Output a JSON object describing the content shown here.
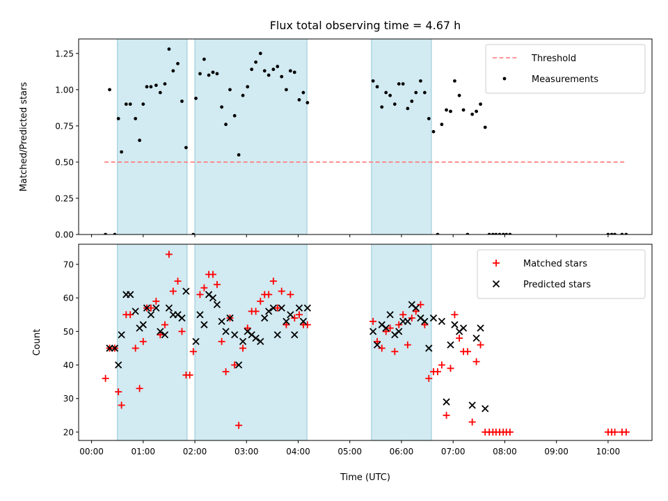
{
  "chart_data": [
    {
      "type": "scatter",
      "title": "Flux total observing time = 4.67 h",
      "xlabel": "",
      "ylabel": "Matched/Predicted stars",
      "xlim_hours": [
        -0.25,
        10.85
      ],
      "ylim": [
        0,
        1.35
      ],
      "yticks": [
        "0.00",
        "0.25",
        "0.50",
        "0.75",
        "1.00",
        "1.25"
      ],
      "yticks_values": [
        0,
        0.25,
        0.5,
        0.75,
        1.0,
        1.25
      ],
      "grid": false,
      "legend_placement": "top-right",
      "shaded_intervals_hours": [
        [
          0.5,
          1.85
        ],
        [
          2.0,
          4.17
        ],
        [
          5.42,
          6.58
        ]
      ],
      "threshold": {
        "name": "Threshold",
        "value": 0.5,
        "x_range_hours": [
          0.25,
          10.35
        ],
        "style": "dashed",
        "color": "#ff7777"
      },
      "series": [
        {
          "name": "Measurements",
          "color": "#000000",
          "marker": "dot",
          "points": [
            [
              0.27,
              0
            ],
            [
              0.35,
              1.0
            ],
            [
              0.45,
              0
            ],
            [
              0.52,
              0.8
            ],
            [
              0.58,
              0.57
            ],
            [
              0.67,
              0.9
            ],
            [
              0.75,
              0.9
            ],
            [
              0.85,
              0.8
            ],
            [
              0.93,
              0.65
            ],
            [
              1.0,
              0.9
            ],
            [
              1.07,
              1.02
            ],
            [
              1.15,
              1.02
            ],
            [
              1.25,
              1.03
            ],
            [
              1.33,
              0.98
            ],
            [
              1.42,
              1.04
            ],
            [
              1.5,
              1.28
            ],
            [
              1.58,
              1.13
            ],
            [
              1.67,
              1.18
            ],
            [
              1.75,
              0.92
            ],
            [
              1.83,
              0.6
            ],
            [
              1.97,
              0
            ],
            [
              2.02,
              0.94
            ],
            [
              2.1,
              1.11
            ],
            [
              2.18,
              1.21
            ],
            [
              2.27,
              1.1
            ],
            [
              2.35,
              1.12
            ],
            [
              2.43,
              1.11
            ],
            [
              2.52,
              0.88
            ],
            [
              2.6,
              0.76
            ],
            [
              2.68,
              1.0
            ],
            [
              2.77,
              0.82
            ],
            [
              2.85,
              0.55
            ],
            [
              2.93,
              0.96
            ],
            [
              3.02,
              1.02
            ],
            [
              3.1,
              1.14
            ],
            [
              3.18,
              1.19
            ],
            [
              3.27,
              1.25
            ],
            [
              3.35,
              1.13
            ],
            [
              3.43,
              1.1
            ],
            [
              3.52,
              1.14
            ],
            [
              3.6,
              1.16
            ],
            [
              3.68,
              1.09
            ],
            [
              3.77,
              1.0
            ],
            [
              3.85,
              1.13
            ],
            [
              3.93,
              1.12
            ],
            [
              4.02,
              0.93
            ],
            [
              4.1,
              0.98
            ],
            [
              4.18,
              0.91
            ],
            [
              5.45,
              1.06
            ],
            [
              5.53,
              1.02
            ],
            [
              5.62,
              0.88
            ],
            [
              5.7,
              0.98
            ],
            [
              5.78,
              0.96
            ],
            [
              5.87,
              0.9
            ],
            [
              5.95,
              1.04
            ],
            [
              6.03,
              1.04
            ],
            [
              6.12,
              0.87
            ],
            [
              6.2,
              0.92
            ],
            [
              6.28,
              0.98
            ],
            [
              6.37,
              1.06
            ],
            [
              6.45,
              0.98
            ],
            [
              6.53,
              0.8
            ],
            [
              6.62,
              0.71
            ],
            [
              6.7,
              0
            ],
            [
              6.78,
              0.76
            ],
            [
              6.87,
              0.86
            ],
            [
              6.95,
              0.85
            ],
            [
              7.03,
              1.06
            ],
            [
              7.12,
              0.96
            ],
            [
              7.2,
              0.86
            ],
            [
              7.28,
              0
            ],
            [
              7.37,
              0.83
            ],
            [
              7.45,
              0.85
            ],
            [
              7.53,
              0.9
            ],
            [
              7.62,
              0.74
            ],
            [
              7.7,
              0
            ],
            [
              7.77,
              0
            ],
            [
              7.83,
              0
            ],
            [
              7.9,
              0
            ],
            [
              7.97,
              0
            ],
            [
              8.03,
              0
            ],
            [
              8.1,
              0
            ],
            [
              10.0,
              0
            ],
            [
              10.07,
              0
            ],
            [
              10.13,
              0
            ],
            [
              10.27,
              0
            ],
            [
              10.35,
              0
            ]
          ]
        }
      ]
    },
    {
      "type": "scatter",
      "title": "",
      "xlabel": "Time (UTC)",
      "ylabel": "Count",
      "xlim_hours": [
        -0.25,
        10.85
      ],
      "ylim": [
        17.5,
        76
      ],
      "yticks": [
        "20",
        "30",
        "40",
        "50",
        "60",
        "70"
      ],
      "yticks_values": [
        20,
        30,
        40,
        50,
        60,
        70
      ],
      "xticks": [
        "00:00",
        "01:00",
        "02:00",
        "03:00",
        "04:00",
        "05:00",
        "06:00",
        "07:00",
        "08:00",
        "09:00",
        "10:00"
      ],
      "xticks_values": [
        0,
        1,
        2,
        3,
        4,
        5,
        6,
        7,
        8,
        9,
        10
      ],
      "grid": false,
      "legend_placement": "top-right",
      "shaded_intervals_hours": [
        [
          0.5,
          1.85
        ],
        [
          2.0,
          4.17
        ],
        [
          5.42,
          6.58
        ]
      ],
      "series": [
        {
          "name": "Matched stars",
          "color": "#ff0000",
          "marker": "plus",
          "points": [
            [
              0.27,
              36
            ],
            [
              0.35,
              45
            ],
            [
              0.45,
              45
            ],
            [
              0.52,
              32
            ],
            [
              0.58,
              28
            ],
            [
              0.67,
              55
            ],
            [
              0.75,
              55
            ],
            [
              0.85,
              45
            ],
            [
              0.93,
              33
            ],
            [
              1.0,
              47
            ],
            [
              1.07,
              57
            ],
            [
              1.15,
              57
            ],
            [
              1.25,
              59
            ],
            [
              1.33,
              49
            ],
            [
              1.42,
              52
            ],
            [
              1.5,
              73
            ],
            [
              1.58,
              62
            ],
            [
              1.67,
              65
            ],
            [
              1.75,
              50
            ],
            [
              1.83,
              37
            ],
            [
              1.9,
              37
            ],
            [
              1.97,
              44
            ],
            [
              2.1,
              61
            ],
            [
              2.18,
              63
            ],
            [
              2.27,
              67
            ],
            [
              2.35,
              67
            ],
            [
              2.43,
              64
            ],
            [
              2.52,
              47
            ],
            [
              2.6,
              38
            ],
            [
              2.68,
              54
            ],
            [
              2.77,
              40
            ],
            [
              2.85,
              22
            ],
            [
              2.93,
              45
            ],
            [
              3.02,
              51
            ],
            [
              3.1,
              56
            ],
            [
              3.18,
              56
            ],
            [
              3.27,
              59
            ],
            [
              3.35,
              61
            ],
            [
              3.43,
              61
            ],
            [
              3.52,
              65
            ],
            [
              3.6,
              57
            ],
            [
              3.68,
              62
            ],
            [
              3.77,
              52
            ],
            [
              3.85,
              61
            ],
            [
              3.93,
              54
            ],
            [
              4.02,
              55
            ],
            [
              4.1,
              52
            ],
            [
              4.18,
              52
            ],
            [
              5.45,
              53
            ],
            [
              5.53,
              47
            ],
            [
              5.62,
              45
            ],
            [
              5.7,
              50
            ],
            [
              5.78,
              51
            ],
            [
              5.87,
              44
            ],
            [
              5.95,
              52
            ],
            [
              6.03,
              55
            ],
            [
              6.12,
              46
            ],
            [
              6.2,
              54
            ],
            [
              6.28,
              56
            ],
            [
              6.37,
              58
            ],
            [
              6.45,
              52
            ],
            [
              6.53,
              36
            ],
            [
              6.62,
              38
            ],
            [
              6.7,
              38
            ],
            [
              6.78,
              40
            ],
            [
              6.87,
              25
            ],
            [
              6.95,
              39
            ],
            [
              7.03,
              55
            ],
            [
              7.12,
              48
            ],
            [
              7.2,
              44
            ],
            [
              7.28,
              44
            ],
            [
              7.37,
              23
            ],
            [
              7.45,
              41
            ],
            [
              7.53,
              46
            ],
            [
              7.62,
              20
            ],
            [
              7.7,
              20
            ],
            [
              7.77,
              20
            ],
            [
              7.83,
              20
            ],
            [
              7.9,
              20
            ],
            [
              7.97,
              20
            ],
            [
              8.03,
              20
            ],
            [
              8.1,
              20
            ],
            [
              10.0,
              20
            ],
            [
              10.07,
              20
            ],
            [
              10.13,
              20
            ],
            [
              10.27,
              20
            ],
            [
              10.35,
              20
            ]
          ]
        },
        {
          "name": "Predicted stars",
          "color": "#000000",
          "marker": "x",
          "points": [
            [
              0.35,
              45
            ],
            [
              0.45,
              45
            ],
            [
              0.52,
              40
            ],
            [
              0.58,
              49
            ],
            [
              0.67,
              61
            ],
            [
              0.75,
              61
            ],
            [
              0.85,
              56
            ],
            [
              0.93,
              51
            ],
            [
              1.0,
              52
            ],
            [
              1.07,
              57
            ],
            [
              1.15,
              55
            ],
            [
              1.25,
              57
            ],
            [
              1.33,
              50
            ],
            [
              1.42,
              49
            ],
            [
              1.5,
              57
            ],
            [
              1.58,
              55
            ],
            [
              1.67,
              55
            ],
            [
              1.75,
              54
            ],
            [
              1.83,
              62
            ],
            [
              2.02,
              47
            ],
            [
              2.1,
              55
            ],
            [
              2.18,
              52
            ],
            [
              2.27,
              61
            ],
            [
              2.35,
              60
            ],
            [
              2.43,
              58
            ],
            [
              2.52,
              53
            ],
            [
              2.6,
              50
            ],
            [
              2.68,
              54
            ],
            [
              2.77,
              49
            ],
            [
              2.85,
              40
            ],
            [
              2.93,
              47
            ],
            [
              3.02,
              50
            ],
            [
              3.1,
              49
            ],
            [
              3.18,
              48
            ],
            [
              3.27,
              47
            ],
            [
              3.35,
              54
            ],
            [
              3.43,
              56
            ],
            [
              3.52,
              57
            ],
            [
              3.6,
              49
            ],
            [
              3.68,
              57
            ],
            [
              3.77,
              53
            ],
            [
              3.85,
              55
            ],
            [
              3.93,
              49
            ],
            [
              4.02,
              57
            ],
            [
              4.1,
              53
            ],
            [
              4.18,
              57
            ],
            [
              5.45,
              50
            ],
            [
              5.53,
              46
            ],
            [
              5.62,
              52
            ],
            [
              5.7,
              51
            ],
            [
              5.78,
              55
            ],
            [
              5.87,
              49
            ],
            [
              5.95,
              50
            ],
            [
              6.03,
              53
            ],
            [
              6.12,
              53
            ],
            [
              6.2,
              58
            ],
            [
              6.28,
              57
            ],
            [
              6.37,
              54
            ],
            [
              6.45,
              53
            ],
            [
              6.53,
              45
            ],
            [
              6.62,
              54
            ],
            [
              6.78,
              53
            ],
            [
              6.87,
              29
            ],
            [
              6.95,
              46
            ],
            [
              7.03,
              52
            ],
            [
              7.12,
              50
            ],
            [
              7.2,
              51
            ],
            [
              7.37,
              28
            ],
            [
              7.45,
              48
            ],
            [
              7.53,
              51
            ],
            [
              7.62,
              27
            ]
          ]
        }
      ]
    }
  ]
}
